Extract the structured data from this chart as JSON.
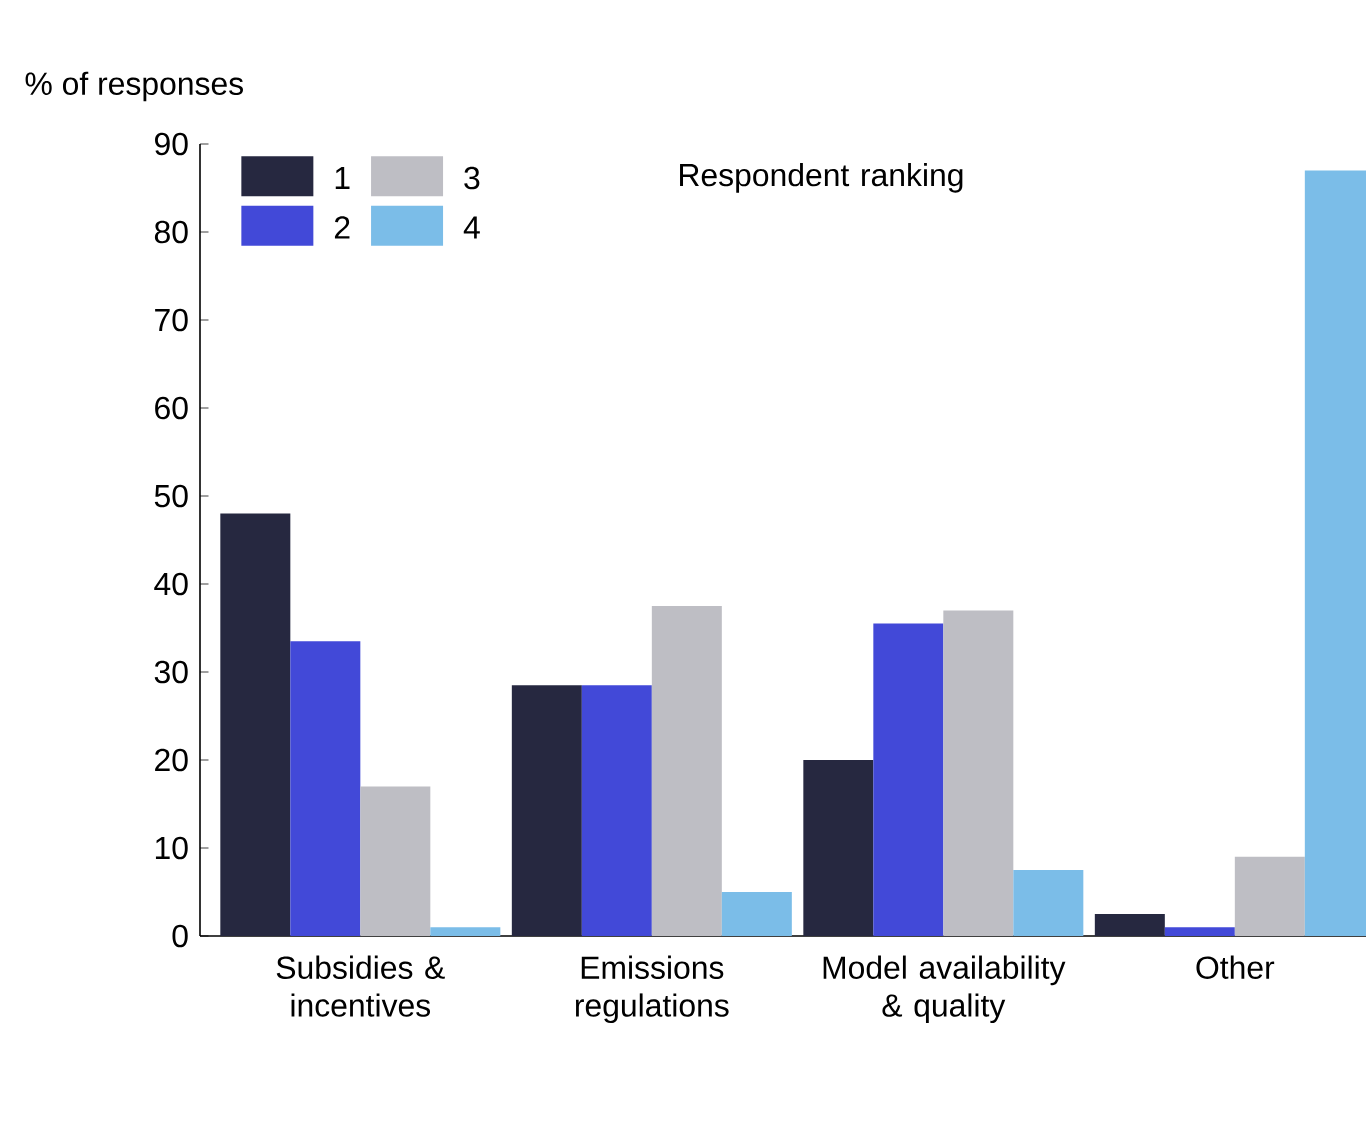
{
  "chart_data": {
    "type": "bar",
    "ylabel": "% of responses",
    "legend_title": "Respondent ranking",
    "legend": "top left",
    "categories": [
      "Subsidies & incentives",
      "Emissions regulations",
      "Model availability & quality",
      "Other"
    ],
    "ylim": [
      0,
      90
    ],
    "yticks": [
      0,
      10,
      20,
      30,
      40,
      50,
      60,
      70,
      80,
      90
    ],
    "series": [
      {
        "name": "1",
        "color": "#262840",
        "values": [
          48,
          28.5,
          20,
          2.5
        ]
      },
      {
        "name": "2",
        "color": "#4249d8",
        "values": [
          33.5,
          28.5,
          35.5,
          1
        ]
      },
      {
        "name": "3",
        "color": "#bebec4",
        "values": [
          17,
          37.5,
          37,
          9
        ]
      },
      {
        "name": "4",
        "color": "#7bbde8",
        "values": [
          1,
          5,
          7.5,
          87
        ]
      }
    ]
  }
}
